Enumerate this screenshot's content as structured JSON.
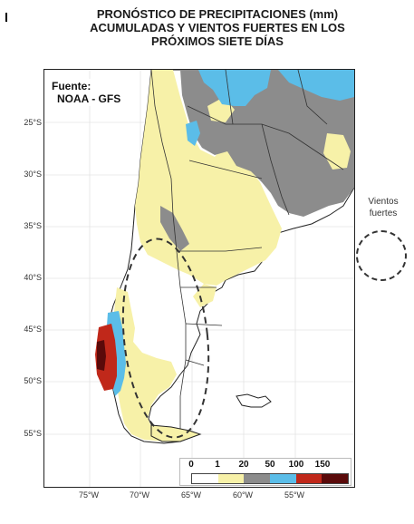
{
  "title": {
    "line1": "PRONÓSTICO DE PRECIPITACIONES (mm)",
    "line2": "ACUMULADAS Y VIENTOS FUERTES EN LOS",
    "line3": "PRÓXIMOS SIETE DÍAS"
  },
  "source": {
    "line1": "Fuente:",
    "line2": "NOAA - GFS"
  },
  "latitudes": [
    "25°S",
    "30°S",
    "35°S",
    "40°S",
    "45°S",
    "50°S",
    "55°S"
  ],
  "longitudes": [
    "75°W",
    "70°W",
    "65°W",
    "60°W",
    "55°W"
  ],
  "legend": {
    "thresholds": [
      "0",
      "1",
      "20",
      "50",
      "100",
      "150"
    ],
    "colors": [
      "#ffffff",
      "#f7f1a8",
      "#8c8c8c",
      "#5bbde8",
      "#c0281a",
      "#5a0a0a"
    ]
  },
  "wind_legend": {
    "label_line1": "Vientos",
    "label_line2": "fuertes"
  },
  "colors": {
    "light_rain": "#f7f1a8",
    "moderate_rain": "#8c8c8c",
    "heavy_rain": "#5bbde8",
    "very_heavy_rain": "#c0281a",
    "extreme_rain": "#5a0a0a"
  }
}
